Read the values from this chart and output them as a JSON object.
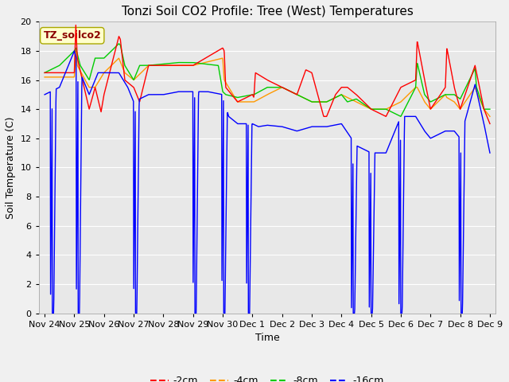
{
  "title": "Tonzi Soil CO2 Profile: Tree (West) Temperatures",
  "ylabel": "Soil Temperature (C)",
  "xlabel": "Time",
  "legend_label": "TZ_soilco2",
  "ylim": [
    0,
    20
  ],
  "series_labels": [
    "-2cm",
    "-4cm",
    "-8cm",
    "-16cm"
  ],
  "series_colors": [
    "#ff0000",
    "#ff9900",
    "#00cc00",
    "#0000ff"
  ],
  "xtick_labels": [
    "Nov 24",
    "Nov 25",
    "Nov 26",
    "Nov 27",
    "Nov 28",
    "Nov 29",
    "Nov 30",
    "Dec 1",
    "Dec 2",
    "Dec 3",
    "Dec 4",
    "Dec 5",
    "Dec 6",
    "Dec 7",
    "Dec 8",
    "Dec 9"
  ],
  "fig_bg": "#f0f0f0",
  "ax_bg": "#e8e8e8",
  "title_fontsize": 11,
  "axis_label_fontsize": 9,
  "tick_fontsize": 8,
  "legend_fontsize": 9,
  "linewidth": 1.0
}
